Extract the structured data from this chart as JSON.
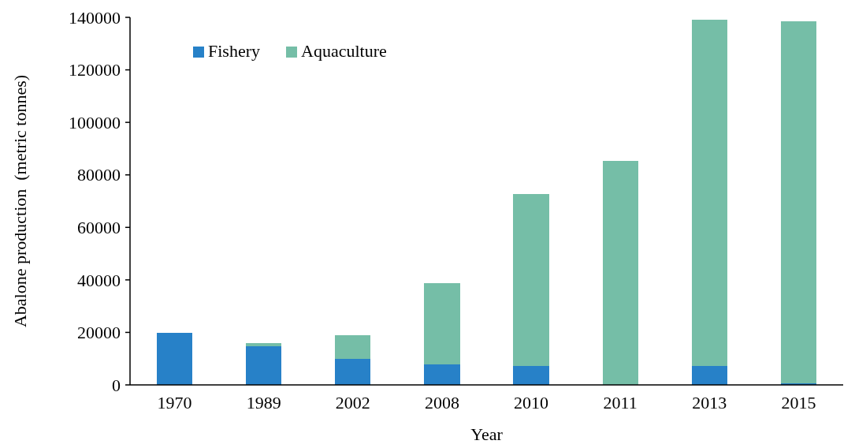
{
  "chart_data": {
    "type": "bar",
    "stacked": true,
    "xlabel": "Year",
    "ylabel": "Abalone production  (metric tonnes)",
    "categories": [
      "1970",
      "1989",
      "2002",
      "2008",
      "2010",
      "2011",
      "2013",
      "2015"
    ],
    "series": [
      {
        "name": "Fishery",
        "color": "#2781c8",
        "values": [
          19800,
          14800,
          10000,
          7700,
          7100,
          0,
          7100,
          700
        ]
      },
      {
        "name": "Aquaculture",
        "color": "#75bea7",
        "values": [
          0,
          1200,
          9000,
          31000,
          65600,
          85400,
          132000,
          137800
        ]
      }
    ],
    "ylim": [
      0,
      140000
    ],
    "yticks": [
      0,
      20000,
      40000,
      60000,
      80000,
      100000,
      120000,
      140000
    ],
    "legend": "top left"
  }
}
